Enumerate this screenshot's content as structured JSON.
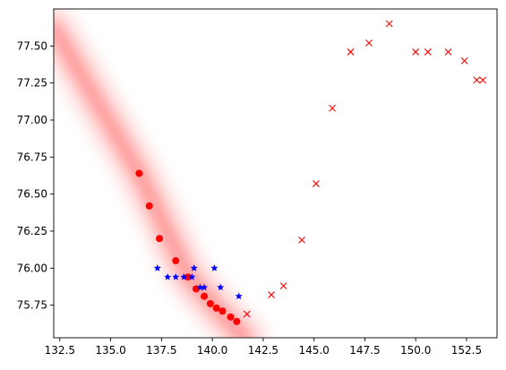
{
  "chart_data": {
    "type": "scatter",
    "title": "",
    "xlabel": "",
    "ylabel": "",
    "xlim": [
      132.2,
      154.0
    ],
    "ylim": [
      75.53,
      77.75
    ],
    "grid": false,
    "x_ticks": [
      "132.5",
      "135.0",
      "137.5",
      "140.0",
      "142.5",
      "145.0",
      "147.5",
      "150.0",
      "152.5"
    ],
    "y_ticks": [
      "75.75",
      "76.00",
      "76.25",
      "76.50",
      "76.75",
      "77.00",
      "77.25",
      "77.50"
    ],
    "series": [
      {
        "marker": "circle",
        "color": "#ff0000",
        "points": [
          [
            136.4,
            76.64
          ],
          [
            136.9,
            76.42
          ],
          [
            137.4,
            76.2
          ],
          [
            138.2,
            76.05
          ],
          [
            138.8,
            75.94
          ],
          [
            139.2,
            75.86
          ],
          [
            139.6,
            75.81
          ],
          [
            139.9,
            75.76
          ],
          [
            140.2,
            75.73
          ],
          [
            140.5,
            75.71
          ],
          [
            140.9,
            75.67
          ],
          [
            141.2,
            75.64
          ]
        ]
      },
      {
        "marker": "star",
        "color": "#0000ff",
        "points": [
          [
            137.3,
            76.0
          ],
          [
            137.8,
            75.94
          ],
          [
            138.2,
            75.94
          ],
          [
            138.6,
            75.94
          ],
          [
            139.0,
            75.94
          ],
          [
            139.1,
            76.0
          ],
          [
            139.4,
            75.87
          ],
          [
            139.6,
            75.87
          ],
          [
            140.1,
            76.0
          ],
          [
            140.4,
            75.87
          ],
          [
            141.3,
            75.81
          ]
        ]
      },
      {
        "marker": "x",
        "color": "#ff0000",
        "points": [
          [
            141.7,
            75.69
          ],
          [
            142.9,
            75.82
          ],
          [
            143.5,
            75.88
          ],
          [
            144.4,
            76.19
          ],
          [
            145.1,
            76.57
          ],
          [
            145.9,
            77.08
          ],
          [
            146.8,
            77.46
          ],
          [
            147.7,
            77.52
          ],
          [
            148.7,
            77.65
          ],
          [
            150.0,
            77.46
          ],
          [
            150.6,
            77.46
          ],
          [
            151.6,
            77.46
          ],
          [
            152.4,
            77.4
          ],
          [
            153.0,
            77.27
          ],
          [
            153.3,
            77.27
          ]
        ]
      }
    ],
    "background_band": {
      "color": "#ff0000",
      "description_free": true,
      "center_line": [
        [
          132.2,
          77.62
        ],
        [
          136.4,
          76.64
        ],
        [
          138.8,
          75.95
        ],
        [
          140.4,
          75.7
        ],
        [
          141.6,
          75.53
        ]
      ]
    }
  }
}
